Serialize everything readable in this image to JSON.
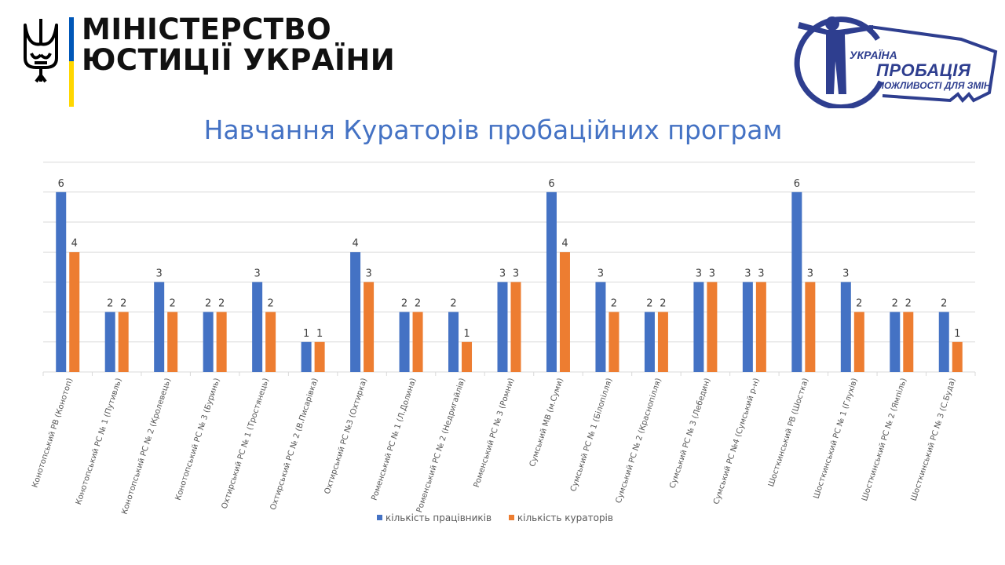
{
  "header": {
    "ministry_name_line1": "МІНІСТЕРСТВО",
    "ministry_name_line2": "ЮСТИЦІЇ УКРАЇНИ",
    "probation_logo": {
      "line1": "УКРАЇНА",
      "line2": "ПРОБАЦІЯ",
      "line3": "МОЖЛИВОСТІ ДЛЯ ЗМІН"
    }
  },
  "colors": {
    "series1": "#4472c4",
    "series2": "#ed7d31",
    "title": "#4472c4",
    "gridline": "#d9d9d9",
    "logo_blue": "#2e3e8f",
    "flag_blue": "#0057b8",
    "flag_yellow": "#ffd700"
  },
  "chart_data": {
    "type": "bar",
    "title": "Навчання Кураторів пробаційних програм",
    "xlabel": "",
    "ylabel": "",
    "ylim": [
      0,
      7
    ],
    "grid": true,
    "legend_position": "bottom",
    "categories": [
      "Конотопський РВ (Конотоп)",
      "Конотопський РС № 1 (Путивль)",
      "Конотопський РС № 2 (Кролевець)",
      "Конотопський РС № 3 (Буринь)",
      "Охтирський РС № 1 (Тростянець)",
      "Охтирський РС № 2 (В.Писарівка)",
      "Охтирський РС №3 (Охтирка)",
      "Роменський РС № 1 (Л.Долина)",
      "Роменський РС № 2 (Недригайлів)",
      "Роменський РС № 3 (Ромни)",
      "Сумський МВ (м.Суми)",
      "Сумський РС № 1 (Білопілля)",
      "Сумський РС № 2 (Краснопілля)",
      "Сумський РС № 3 (Лебедин)",
      "Сумський РС №4 (Сумський р-н)",
      "Шосткинський РВ (Шостка)",
      "Шосткинський РС № 1 (Глухів)",
      "Шосткинський РС № 2 (Ямпіль)",
      "Шосткинський РС № 3 (С.Буда)"
    ],
    "series": [
      {
        "name": "кількість працівників",
        "values": [
          6,
          2,
          3,
          2,
          3,
          1,
          4,
          2,
          2,
          3,
          6,
          3,
          2,
          3,
          3,
          6,
          3,
          2,
          2
        ]
      },
      {
        "name": "кількість кураторів",
        "values": [
          4,
          2,
          2,
          2,
          2,
          1,
          3,
          2,
          1,
          3,
          4,
          2,
          2,
          3,
          3,
          3,
          2,
          2,
          1
        ]
      }
    ]
  }
}
